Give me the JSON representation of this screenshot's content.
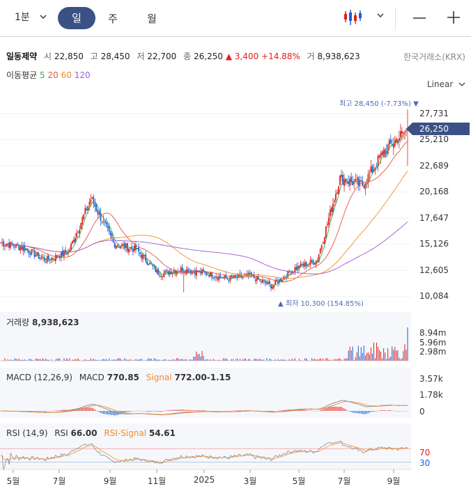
{
  "toolbar": {
    "period_label": "1분",
    "tabs": [
      "일",
      "주",
      "월"
    ],
    "active_tab": "일"
  },
  "stock": {
    "name": "일동제약",
    "open_label": "시",
    "open": "22,850",
    "high_label": "고",
    "high": "28,450",
    "low_label": "저",
    "low": "22,700",
    "close_label": "종",
    "close": "26,250",
    "change": "▲ 3,400 +14.88%",
    "volume_label": "거",
    "volume": "8,938,623",
    "exchange": "한국거래소(KRX)"
  },
  "moving_average": {
    "label": "이동평균",
    "periods": [
      {
        "value": "5",
        "color": "#2fa84f"
      },
      {
        "value": "20",
        "color": "#e8503a"
      },
      {
        "value": "60",
        "color": "#f28c28"
      },
      {
        "value": "120",
        "color": "#9b59d6"
      }
    ]
  },
  "scale": {
    "label": "Linear"
  },
  "price_chart": {
    "y_labels": [
      "27,731",
      "25,210",
      "22,689",
      "20,168",
      "17,647",
      "15,126",
      "12,605",
      "10,084"
    ],
    "current_price": "26,250",
    "high_marker": "최고 28,450 (-7.73%) ▼",
    "low_marker": "▲ 최저 10,300 (154.85%)",
    "ylim": [
      10084,
      27731
    ]
  },
  "volume_panel": {
    "label": "거래량",
    "value": "8,938,623",
    "y_labels": [
      "8.94m",
      "5.96m",
      "2.98m"
    ]
  },
  "macd_panel": {
    "label": "MACD (12,26,9)",
    "macd_label": "MACD",
    "macd_value": "770.85",
    "signal_label": "Signal",
    "signal_value": "772.00",
    "hist_value": "-1.15",
    "y_labels": [
      "3.57k",
      "1.78k",
      "0"
    ]
  },
  "rsi_panel": {
    "label": "RSI (14,9)",
    "rsi_label": "RSI",
    "rsi_value": "66.00",
    "signal_label": "RSI-Signal",
    "signal_value": "54.61",
    "y_labels": [
      "70",
      "30"
    ]
  },
  "x_axis": [
    "5월",
    "7월",
    "9월",
    "11월",
    "2025",
    "3월",
    "5월",
    "7월",
    "9월"
  ],
  "colors": {
    "accent": "#3b5186",
    "up": "#e0201b",
    "down": "#1c5fd6",
    "signal": "#f28c28"
  },
  "chart_data": {
    "type": "candlestick",
    "y_unit": "KRW",
    "ylim": [
      10084,
      27731
    ],
    "x_ticks": [
      "5월",
      "7월",
      "9월",
      "11월",
      "2025",
      "3월",
      "5월",
      "7월",
      "9월"
    ],
    "close_series_anchors": [
      {
        "x": "5월",
        "close": 15300
      },
      {
        "x": "6월",
        "close": 14800
      },
      {
        "x": "7월",
        "close": 13600
      },
      {
        "x": "8월",
        "close": 14400
      },
      {
        "x": "8월 말",
        "close": 19600
      },
      {
        "x": "9월",
        "close": 15200
      },
      {
        "x": "10월",
        "close": 14600
      },
      {
        "x": "11월",
        "close": 12300
      },
      {
        "x": "12월",
        "close": 12700
      },
      {
        "x": "2025",
        "close": 12400
      },
      {
        "x": "2월",
        "close": 11800
      },
      {
        "x": "3월",
        "close": 12100
      },
      {
        "x": "4월",
        "close": 11100
      },
      {
        "x": "5월",
        "close": 12800
      },
      {
        "x": "6월",
        "close": 13600
      },
      {
        "x": "7월",
        "close": 21500
      },
      {
        "x": "8월",
        "close": 20800
      },
      {
        "x": "9월",
        "close": 24200
      },
      {
        "x": "9월 말",
        "close": 26250
      }
    ],
    "high": 28450,
    "low": 10300
  }
}
